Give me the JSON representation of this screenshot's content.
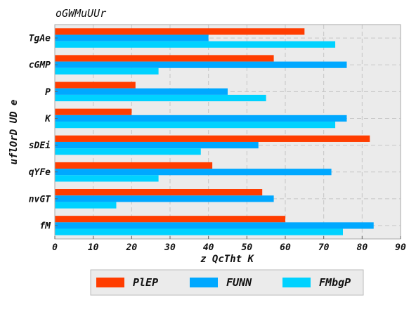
{
  "chart_data": {
    "type": "bar",
    "orientation": "horizontal",
    "title": "oGWMuUUr",
    "xlabel": "z QcTht K",
    "ylabel": "uflOrD UD e",
    "categories": [
      "TgAe",
      "cGMP",
      "P",
      "K",
      "sDEi",
      "qYFe",
      "nvGT",
      "fM"
    ],
    "series": [
      {
        "name": "PlEP",
        "color": "#ff3d00",
        "values": [
          65,
          57,
          21,
          20,
          82,
          41,
          54,
          60
        ]
      },
      {
        "name": "FUNN",
        "color": "#00a8ff",
        "values": [
          40,
          76,
          45,
          76,
          53,
          72,
          57,
          83
        ]
      },
      {
        "name": "FMbgP",
        "color": "#00d2ff",
        "values": [
          73,
          27,
          55,
          73,
          38,
          27,
          16,
          75
        ]
      }
    ],
    "xlim": [
      0,
      90
    ],
    "xticks": [
      0,
      10,
      20,
      30,
      40,
      50,
      60,
      70,
      80,
      90
    ],
    "grid": true,
    "legend_position": "bottom-center",
    "plot_background": "#ebebeb"
  }
}
